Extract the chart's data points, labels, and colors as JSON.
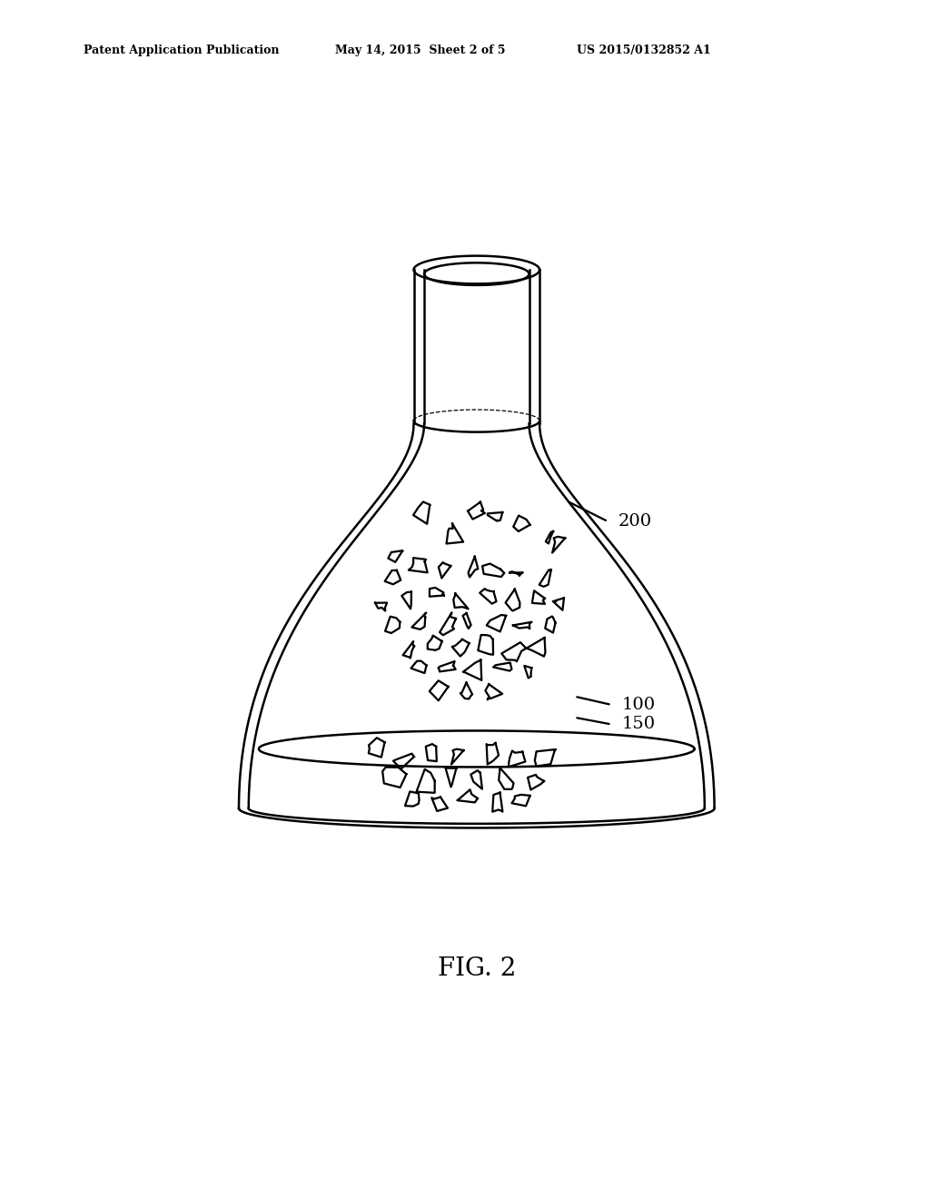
{
  "bg_color": "#ffffff",
  "line_color": "#000000",
  "line_width": 1.8,
  "header_left": "Patent Application Publication",
  "header_center": "May 14, 2015  Sheet 2 of 5",
  "header_right": "US 2015/0132852 A1",
  "fig_label": "FIG. 2",
  "label_200": "200",
  "label_100": "100",
  "label_150": "150"
}
